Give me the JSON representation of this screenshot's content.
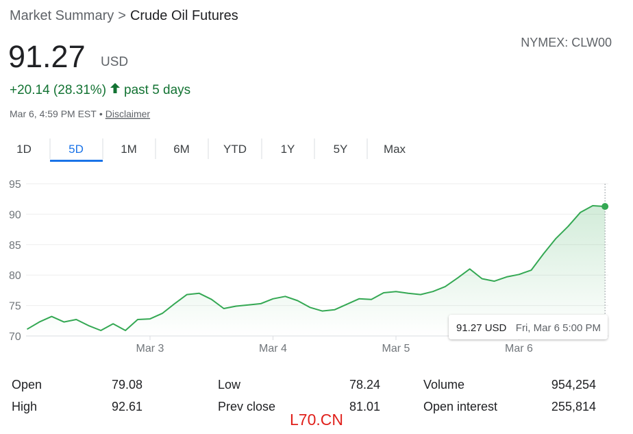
{
  "header": {
    "breadcrumb": {
      "parent": "Market Summary",
      "separator": ">",
      "current": "Crude Oil Futures"
    },
    "price": "91.27",
    "currency": "USD",
    "exchange": "NYMEX: CLW00",
    "change": "+20.14 (28.31%)",
    "period": "past 5 days",
    "timestamp": "Mar 6, 4:59 PM EST",
    "bullet": "•",
    "disclaimer": "Disclaimer"
  },
  "tabs": [
    "1D",
    "5D",
    "1M",
    "6M",
    "YTD",
    "1Y",
    "5Y",
    "Max"
  ],
  "selected_tab": "5D",
  "chart_data": {
    "type": "line",
    "color": "#34a853",
    "grid": true,
    "ylim": [
      70,
      95
    ],
    "yticks": [
      70,
      75,
      80,
      85,
      90,
      95
    ],
    "categories": [
      null,
      null,
      null,
      null,
      null,
      null,
      null,
      null,
      null,
      null,
      "Mar 3",
      null,
      null,
      null,
      null,
      null,
      null,
      null,
      null,
      null,
      "Mar 4",
      null,
      null,
      null,
      null,
      null,
      null,
      null,
      null,
      null,
      "Mar 5",
      null,
      null,
      null,
      null,
      null,
      null,
      null,
      null,
      null,
      "Mar 6",
      null,
      null,
      null,
      null,
      null,
      null,
      null
    ],
    "values": [
      71.1,
      72.3,
      73.2,
      72.3,
      72.7,
      71.7,
      70.9,
      72.0,
      70.9,
      72.7,
      72.8,
      73.7,
      75.3,
      76.8,
      77.0,
      76.0,
      74.5,
      74.9,
      75.1,
      75.3,
      76.1,
      76.5,
      75.8,
      74.7,
      74.1,
      74.3,
      75.2,
      76.1,
      76.0,
      77.1,
      77.3,
      77.0,
      76.8,
      77.3,
      78.1,
      79.5,
      81.0,
      79.4,
      79.0,
      79.7,
      80.1,
      80.8,
      83.5,
      86.0,
      88.0,
      90.3,
      91.4,
      91.27
    ],
    "tooltip": {
      "value": "91.27 USD",
      "time": "Fri, Mar 6 5:00 PM"
    }
  },
  "stats": [
    [
      "Open",
      "79.08"
    ],
    [
      "High",
      "92.61"
    ],
    [
      "Low",
      "78.24"
    ],
    [
      "Prev close",
      "81.01"
    ],
    [
      "Volume",
      "954,254"
    ],
    [
      "Open interest",
      "255,814"
    ]
  ],
  "watermark": "L70.CN"
}
